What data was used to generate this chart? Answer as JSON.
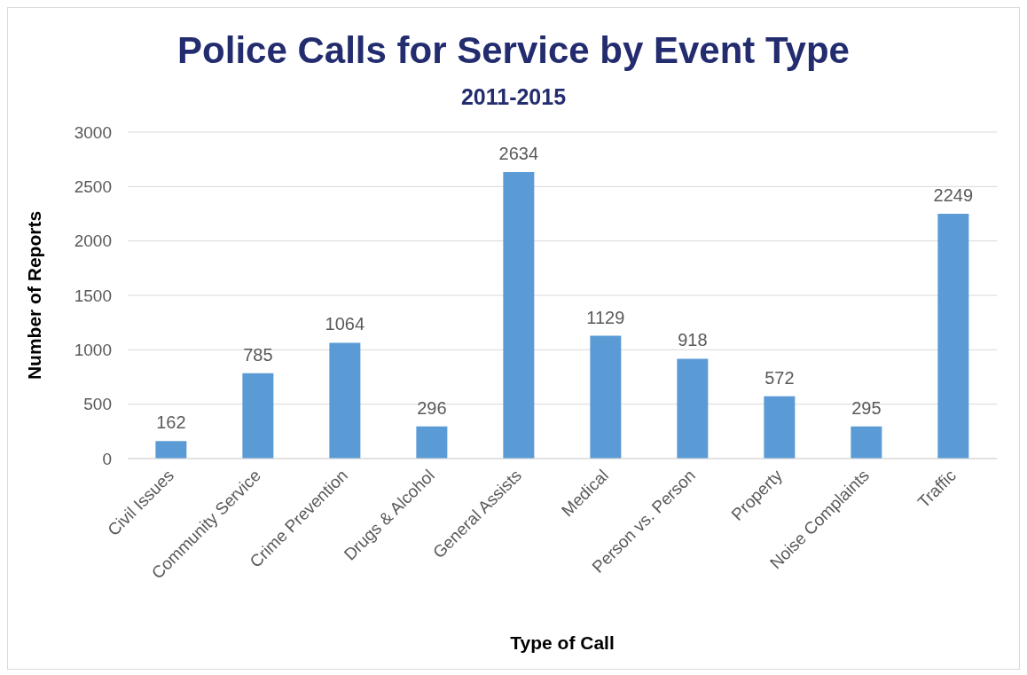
{
  "chart_data": {
    "type": "bar",
    "title": "Police Calls for Service by Event Type",
    "subtitle": "2011-2015",
    "xlabel": "Type of Call",
    "ylabel": "Number of Reports",
    "categories": [
      "Civil Issues",
      "Community Service",
      "Crime Prevention",
      "Drugs & Alcohol",
      "General Assists",
      "Medical",
      "Person vs. Person",
      "Property",
      "Noise Complaints",
      "Traffic"
    ],
    "values": [
      162,
      785,
      1064,
      296,
      2634,
      1129,
      918,
      572,
      295,
      2249
    ],
    "color": "#5b9bd5",
    "ylim": [
      0,
      3000
    ],
    "yticks": [
      0,
      500,
      1000,
      1500,
      2000,
      2500,
      3000
    ],
    "grid": "y",
    "data_labels": true
  }
}
